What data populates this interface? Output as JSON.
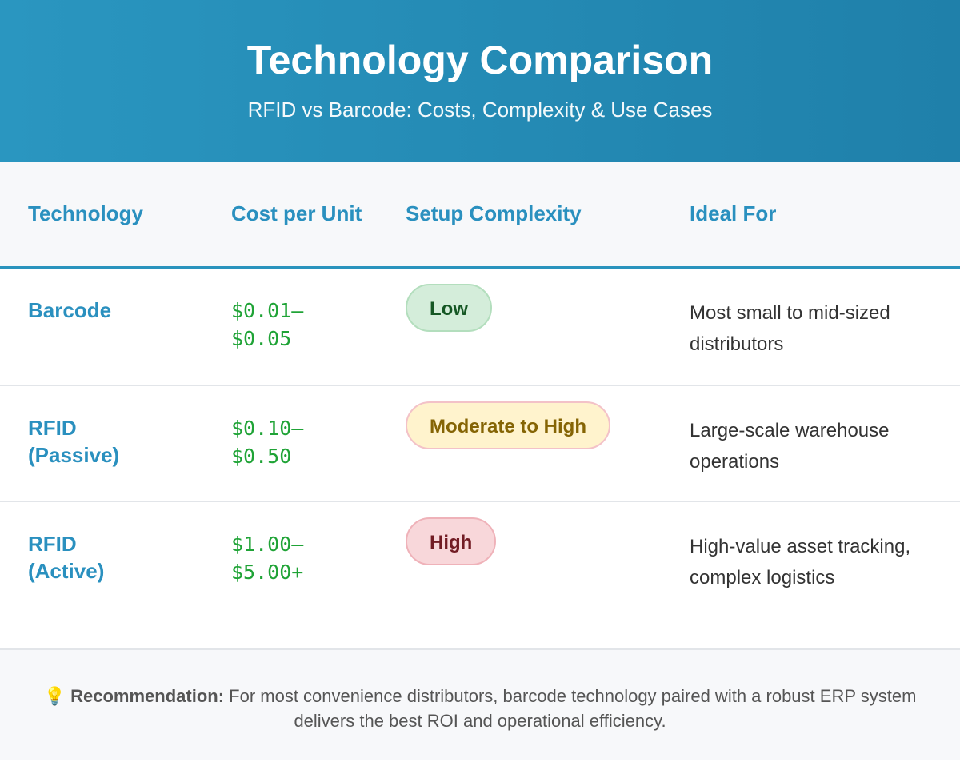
{
  "header": {
    "title": "Technology Comparison",
    "subtitle": "RFID vs Barcode: Costs, Complexity & Use Cases"
  },
  "table": {
    "columns": [
      "Technology",
      "Cost per Unit",
      "Setup Complexity",
      "Ideal For"
    ],
    "rows": [
      [
        "Barcode",
        "$0.01–$0.05",
        "Low",
        "Most small to mid-sized distributors"
      ],
      [
        "RFID (Passive)",
        "$0.10–$0.50",
        "Moderate to High",
        "Large-scale warehouse operations"
      ],
      [
        "RFID (Active)",
        "$1.00–$5.00+",
        "High",
        "High-value asset tracking, complex logistics"
      ]
    ]
  },
  "footer": {
    "icon": "💡",
    "label": "Recommendation:",
    "text": "For most convenience distributors, barcode technology paired with a robust ERP system delivers the best ROI and operational efficiency."
  }
}
